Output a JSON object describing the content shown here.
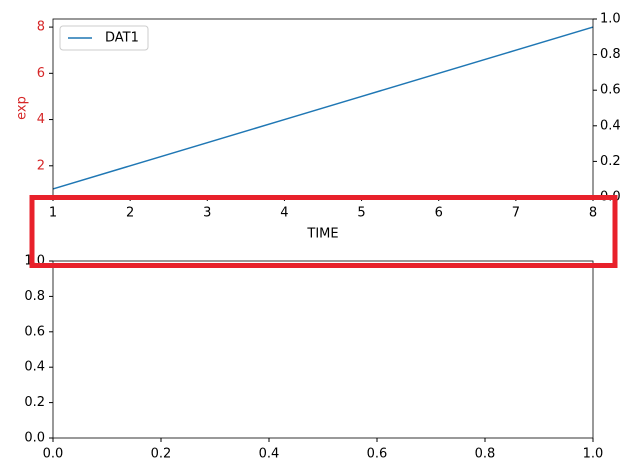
{
  "chart_data": [
    {
      "type": "line",
      "xlabel": "TIME",
      "ylabel": "exp",
      "y_axis_color": "#d62728",
      "x": [
        1,
        2,
        3,
        4,
        5,
        6,
        7,
        8
      ],
      "series": [
        {
          "name": "DAT1",
          "color": "#1f77b4",
          "values": [
            1,
            2,
            3,
            4,
            5,
            6,
            7,
            8
          ]
        }
      ],
      "xlim": [
        1,
        8
      ],
      "xticks": [
        1,
        2,
        3,
        4,
        5,
        6,
        7,
        8
      ],
      "ylim": [
        0.65,
        8.35
      ],
      "yticks": [
        2,
        4,
        6,
        8
      ],
      "y2lim": [
        0,
        1
      ],
      "y2ticks": [
        {
          "value": 0,
          "label": "0.0"
        },
        {
          "value": 0.2,
          "label": "0.2"
        },
        {
          "value": 0.4,
          "label": "0.4"
        },
        {
          "value": 0.6,
          "label": "0.6"
        },
        {
          "value": 0.8,
          "label": "0.8"
        },
        {
          "value": 1,
          "label": "1.0"
        }
      ],
      "legend": "upper left"
    },
    {
      "type": "line",
      "series": [],
      "xlim": [
        0,
        1
      ],
      "xticks": [
        {
          "value": 0,
          "label": "0.0"
        },
        {
          "value": 0.2,
          "label": "0.2"
        },
        {
          "value": 0.4,
          "label": "0.4"
        },
        {
          "value": 0.6,
          "label": "0.6"
        },
        {
          "value": 0.8,
          "label": "0.8"
        },
        {
          "value": 1,
          "label": "1.0"
        }
      ],
      "ylim": [
        0,
        1
      ],
      "yticks": [
        {
          "value": 0,
          "label": "0.0"
        },
        {
          "value": 0.2,
          "label": "0.2"
        },
        {
          "value": 0.4,
          "label": "0.4"
        },
        {
          "value": 0.6,
          "label": "0.6"
        },
        {
          "value": 0.8,
          "label": "0.8"
        },
        {
          "value": 1,
          "label": "1.0"
        }
      ]
    }
  ]
}
